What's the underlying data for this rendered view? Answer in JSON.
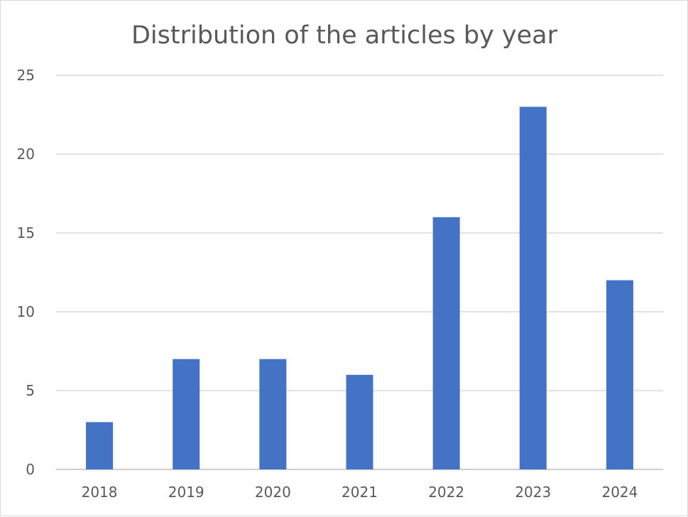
{
  "chart_data": {
    "type": "bar",
    "title": "Distribution of the articles by year",
    "categories": [
      "2018",
      "2019",
      "2020",
      "2021",
      "2022",
      "2023",
      "2024"
    ],
    "series": [
      {
        "values": [
          3,
          7,
          7,
          6,
          16,
          23,
          12
        ],
        "color": "#4472c4"
      }
    ],
    "ylim": [
      0,
      25
    ],
    "yticks": [
      0,
      5,
      10,
      15,
      20,
      25
    ],
    "ytick_labels": [
      "0",
      "5",
      "10",
      "15",
      "20",
      "25"
    ],
    "grid": true,
    "legend": "none",
    "xlabel": "",
    "ylabel": ""
  }
}
